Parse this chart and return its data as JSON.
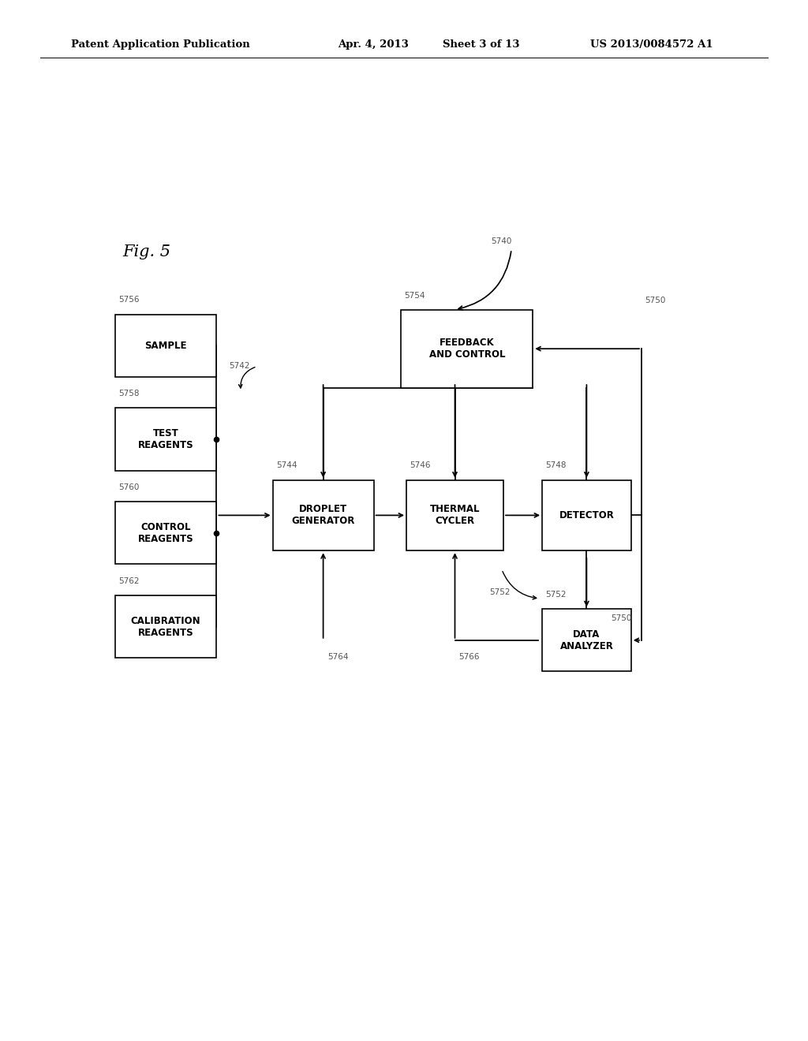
{
  "bg_color": "#ffffff",
  "header_left": "Patent Application Publication",
  "header_mid1": "Apr. 4, 2013",
  "header_mid2": "Sheet 3 of 13",
  "header_right": "US 2013/0084572 A1",
  "fig_label": "Fig. 5",
  "boxes": {
    "SAMPLE": [
      0.205,
      0.668,
      0.125,
      0.06,
      "SAMPLE",
      "5756"
    ],
    "TEST": [
      0.205,
      0.578,
      0.125,
      0.06,
      "TEST\nREAGENTS",
      "5758"
    ],
    "CONTROL": [
      0.205,
      0.488,
      0.125,
      0.06,
      "CONTROL\nREAGENTS",
      "5760"
    ],
    "CALIBRATION": [
      0.205,
      0.398,
      0.125,
      0.06,
      "CALIBRATION\nREAGENTS",
      "5762"
    ],
    "FEEDBACK": [
      0.578,
      0.665,
      0.163,
      0.075,
      "FEEDBACK\nAND CONTROL",
      "5754"
    ],
    "DROPLET": [
      0.4,
      0.505,
      0.125,
      0.068,
      "DROPLET\nGENERATOR",
      "5744"
    ],
    "THERMAL": [
      0.563,
      0.505,
      0.12,
      0.068,
      "THERMAL\nCYCLER",
      "5746"
    ],
    "DETECTOR": [
      0.726,
      0.505,
      0.11,
      0.068,
      "DETECTOR",
      "5748"
    ],
    "DATA": [
      0.726,
      0.385,
      0.11,
      0.06,
      "DATA\nANALYZER",
      "5752"
    ]
  }
}
